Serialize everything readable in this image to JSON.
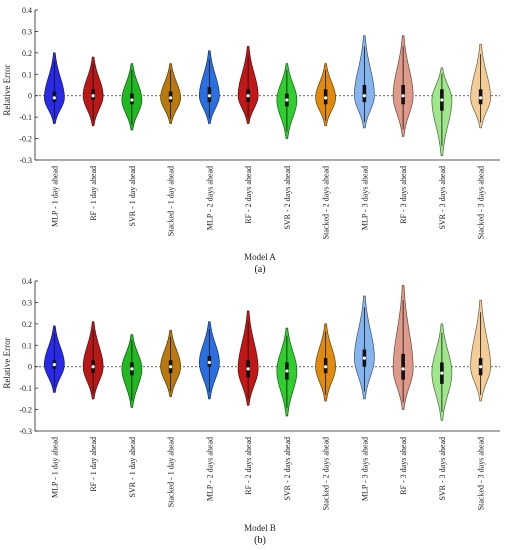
{
  "chart_data": [
    {
      "type": "violin",
      "panel_label": "(a)",
      "xlabel": "Model A",
      "ylabel": "Relative Error",
      "ylim": [
        -0.3,
        0.4
      ],
      "yticks": [
        "-0.3",
        "-0.2",
        "-0.1",
        "0",
        "0.1",
        "0.2",
        "0.3",
        "0.4"
      ],
      "reference_line": 0,
      "categories": [
        "MLP - 1 day ahead",
        "RF - 1 day ahead",
        "SVR - 1 day ahead",
        "Stacked - 1 day ahead",
        "MLP - 2 days ahead",
        "RF - 2 days ahead",
        "SVR - 2 days ahead",
        "Stacked - 2 days ahead",
        "MLP - 3 days ahead",
        "RF - 3 days ahead",
        "SVR - 3 days ahead",
        "Stacked - 3 days ahead"
      ],
      "colors": [
        "#2a2ae6",
        "#b81818",
        "#22b822",
        "#b87a0e",
        "#2a6ee0",
        "#c01818",
        "#30cc30",
        "#e08a10",
        "#86b4ee",
        "#e09a8a",
        "#a0e68a",
        "#f4cc98"
      ],
      "violins": [
        {
          "min": -0.13,
          "q1": -0.03,
          "median": -0.01,
          "q3": 0.02,
          "max": 0.2
        },
        {
          "min": -0.14,
          "q1": -0.02,
          "median": 0.0,
          "q3": 0.03,
          "max": 0.18
        },
        {
          "min": -0.16,
          "q1": -0.04,
          "median": -0.02,
          "q3": 0.01,
          "max": 0.15
        },
        {
          "min": -0.13,
          "q1": -0.03,
          "median": -0.01,
          "q3": 0.02,
          "max": 0.15
        },
        {
          "min": -0.13,
          "q1": -0.03,
          "median": 0.0,
          "q3": 0.04,
          "max": 0.21
        },
        {
          "min": -0.13,
          "q1": -0.03,
          "median": 0.0,
          "q3": 0.03,
          "max": 0.23
        },
        {
          "min": -0.2,
          "q1": -0.05,
          "median": -0.02,
          "q3": 0.01,
          "max": 0.15
        },
        {
          "min": -0.14,
          "q1": -0.04,
          "median": -0.01,
          "q3": 0.03,
          "max": 0.15
        },
        {
          "min": -0.15,
          "q1": -0.03,
          "median": 0.0,
          "q3": 0.05,
          "max": 0.28
        },
        {
          "min": -0.19,
          "q1": -0.04,
          "median": 0.0,
          "q3": 0.05,
          "max": 0.28
        },
        {
          "min": -0.28,
          "q1": -0.07,
          "median": -0.02,
          "q3": 0.03,
          "max": 0.13
        },
        {
          "min": -0.15,
          "q1": -0.04,
          "median": -0.01,
          "q3": 0.03,
          "max": 0.24
        }
      ]
    },
    {
      "type": "violin",
      "panel_label": "(b)",
      "xlabel": "Model B",
      "ylabel": "Relative Error",
      "ylim": [
        -0.3,
        0.4
      ],
      "yticks": [
        "-0.3",
        "-0.2",
        "-0.1",
        "0",
        "0.1",
        "0.2",
        "0.3",
        "0.4"
      ],
      "reference_line": 0,
      "categories": [
        "MLP - 1 day ahead",
        "RF - 1 day ahead",
        "SVR - 1 day ahead",
        "Stacked - 1 day ahead",
        "MLP - 2 days ahead",
        "RF - 2 days ahead",
        "SVR - 2 days ahead",
        "Stacked - 2 days ahead",
        "MLP - 3 days ahead",
        "RF - 3 days ahead",
        "SVR - 3 days ahead",
        "Stacked - 3 days ahead"
      ],
      "colors": [
        "#2a2ae6",
        "#b81818",
        "#22b822",
        "#b87a0e",
        "#2a6ee0",
        "#c01818",
        "#30cc30",
        "#e08a10",
        "#86b4ee",
        "#e09a8a",
        "#a0e68a",
        "#f4cc98"
      ],
      "violins": [
        {
          "min": -0.12,
          "q1": -0.01,
          "median": 0.01,
          "q3": 0.03,
          "max": 0.19
        },
        {
          "min": -0.15,
          "q1": -0.03,
          "median": 0.0,
          "q3": 0.03,
          "max": 0.21
        },
        {
          "min": -0.19,
          "q1": -0.04,
          "median": -0.01,
          "q3": 0.02,
          "max": 0.15
        },
        {
          "min": -0.14,
          "q1": -0.03,
          "median": 0.0,
          "q3": 0.03,
          "max": 0.17
        },
        {
          "min": -0.15,
          "q1": 0.0,
          "median": 0.02,
          "q3": 0.05,
          "max": 0.21
        },
        {
          "min": -0.18,
          "q1": -0.05,
          "median": -0.01,
          "q3": 0.03,
          "max": 0.26
        },
        {
          "min": -0.23,
          "q1": -0.06,
          "median": -0.02,
          "q3": 0.02,
          "max": 0.18
        },
        {
          "min": -0.16,
          "q1": -0.03,
          "median": 0.0,
          "q3": 0.04,
          "max": 0.2
        },
        {
          "min": -0.15,
          "q1": 0.0,
          "median": 0.04,
          "q3": 0.08,
          "max": 0.33
        },
        {
          "min": -0.2,
          "q1": -0.06,
          "median": -0.01,
          "q3": 0.06,
          "max": 0.38
        },
        {
          "min": -0.25,
          "q1": -0.08,
          "median": -0.03,
          "q3": 0.02,
          "max": 0.2
        },
        {
          "min": -0.16,
          "q1": -0.04,
          "median": 0.0,
          "q3": 0.04,
          "max": 0.31
        }
      ]
    }
  ]
}
